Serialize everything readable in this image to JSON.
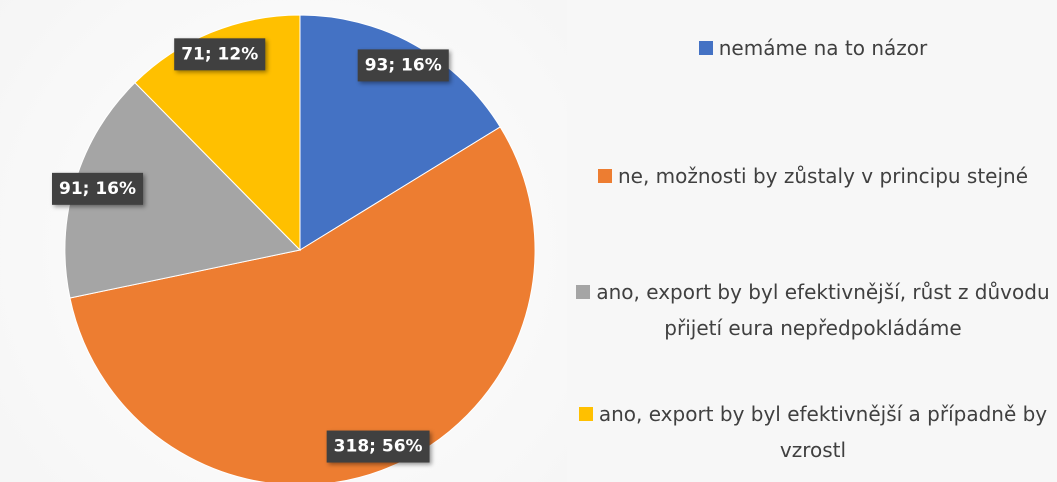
{
  "chart_data": {
    "type": "pie",
    "categories": [
      "nemáme na to názor",
      "ne, možnosti by zůstaly v principu stejné",
      "ano, export by byl efektivnější, růst z důvodu přijetí eura nepředpokládáme",
      "ano, export by byl efektivnější a případně by vzrostl"
    ],
    "values": [
      93,
      318,
      91,
      71
    ],
    "value_labels": [
      "93; 16%",
      "318; 56%",
      "91; 16%",
      "71; 12%"
    ],
    "colors": [
      "#4472c4",
      "#ed7d31",
      "#a5a5a5",
      "#ffc000"
    ],
    "legend": "right"
  }
}
